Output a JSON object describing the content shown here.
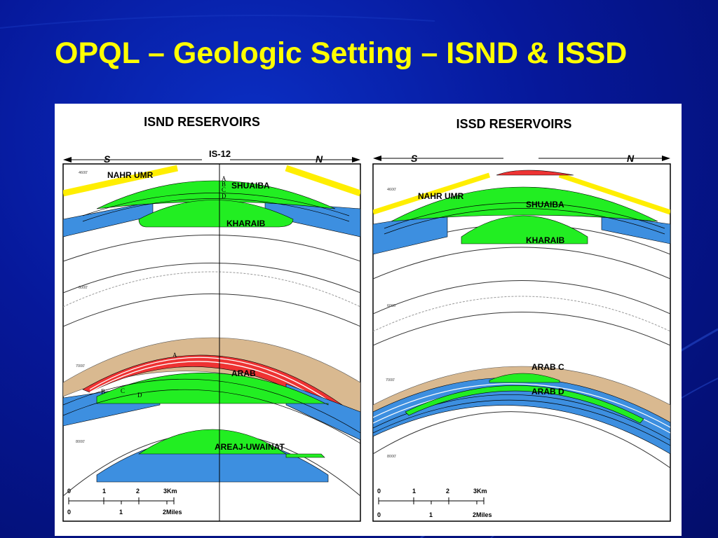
{
  "slide": {
    "title": "OPQL – Geologic Setting – ISND & ISSD"
  },
  "colors": {
    "background": "#061b9e",
    "title": "#ffff00",
    "reservoir_green": "#22ee22",
    "water_blue": "#3d8fe0",
    "nahr_umr_yellow": "#ffee00",
    "arab_red": "#ee3333",
    "cap_tan": "#d9b990"
  },
  "panels": [
    {
      "title": "ISND RESERVOIRS",
      "south": "S",
      "north": "N",
      "well": "IS-12",
      "depths": [
        "4600'",
        "6000'",
        "7000'",
        "8000'"
      ],
      "units": [
        "NAHR UMR",
        "SHUAIBA",
        "KHARAIB",
        "ARAB",
        "AREAJ-UWAINAT"
      ],
      "shuaiba_zones": [
        "A",
        "B",
        "C",
        "D"
      ],
      "arab_zones": [
        "A",
        "B",
        "C",
        "D"
      ],
      "scale": {
        "km": [
          "0",
          "1",
          "2",
          "3Km"
        ],
        "miles": [
          "0",
          "1",
          "2Miles"
        ]
      }
    },
    {
      "title": "ISSD RESERVOIRS",
      "south": "S",
      "north": "N",
      "depths": [
        "4600'",
        "6000'",
        "7000'",
        "8000'"
      ],
      "units": [
        "NAHR UMR",
        "SHUAIBA",
        "KHARAIB",
        "ARAB C",
        "ARAB D"
      ],
      "scale": {
        "km": [
          "0",
          "1",
          "2",
          "3Km"
        ],
        "miles": [
          "0",
          "1",
          "2Miles"
        ]
      }
    }
  ]
}
